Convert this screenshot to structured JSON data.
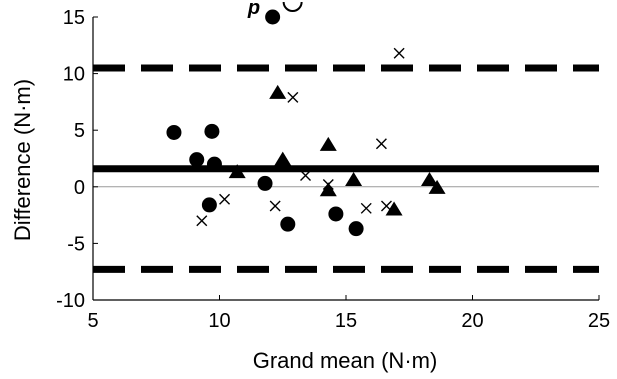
{
  "chart_data": {
    "type": "scatter",
    "xlabel": "Grand mean (N·m)",
    "ylabel": "Difference (N·m)",
    "xlim": [
      5,
      25
    ],
    "ylim": [
      -10,
      15
    ],
    "xticks": [
      5,
      10,
      15,
      20,
      25
    ],
    "yticks": [
      -10,
      -5,
      0,
      5,
      10,
      15
    ],
    "grid": false,
    "mean_difference": 1.6,
    "limits_of_agreement": [
      10.5,
      -7.3
    ],
    "zero_line": 0,
    "annotation": "p",
    "series": [
      {
        "marker": "circle",
        "points": [
          [
            8.2,
            4.8
          ],
          [
            9.1,
            2.4
          ],
          [
            9.7,
            4.9
          ],
          [
            9.8,
            2.0
          ],
          [
            9.6,
            -1.6
          ],
          [
            11.8,
            0.3
          ],
          [
            12.1,
            15.0
          ],
          [
            12.7,
            -3.3
          ],
          [
            14.6,
            -2.4
          ],
          [
            15.4,
            -3.7
          ]
        ]
      },
      {
        "marker": "triangle",
        "points": [
          [
            10.7,
            1.3
          ],
          [
            12.3,
            8.3
          ],
          [
            12.5,
            2.4
          ],
          [
            14.3,
            3.7
          ],
          [
            14.3,
            -0.3
          ],
          [
            15.3,
            0.6
          ],
          [
            16.9,
            -2.0
          ],
          [
            18.3,
            0.6
          ],
          [
            18.6,
            -0.1
          ]
        ]
      },
      {
        "marker": "cross",
        "points": [
          [
            9.3,
            -3.0
          ],
          [
            10.2,
            -1.1
          ],
          [
            12.2,
            -1.7
          ],
          [
            12.9,
            7.9
          ],
          [
            13.4,
            1.0
          ],
          [
            14.3,
            0.2
          ],
          [
            15.8,
            -1.9
          ],
          [
            16.4,
            3.8
          ],
          [
            16.6,
            -1.7
          ],
          [
            17.1,
            11.8
          ]
        ]
      }
    ]
  }
}
